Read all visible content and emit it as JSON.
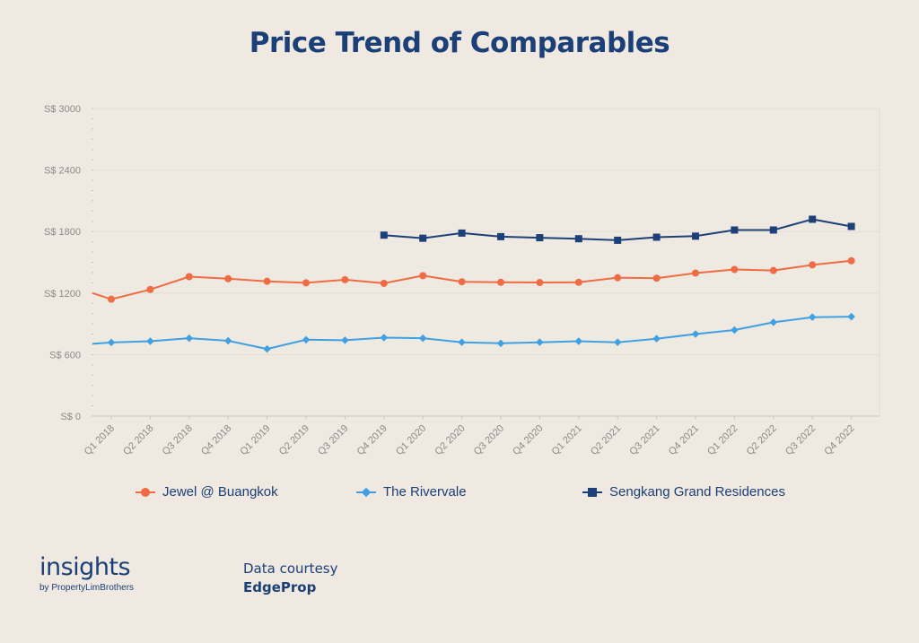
{
  "header": {
    "title": "Price Trend of Comparables"
  },
  "chart_data": {
    "type": "line",
    "title": "Price Trend of Comparables",
    "xlabel": "",
    "ylabel": "",
    "categories": [
      "Q1 2018",
      "Q2 2018",
      "Q3 2018",
      "Q4 2018",
      "Q1 2019",
      "Q2 2019",
      "Q3 2019",
      "Q4 2019",
      "Q1 2020",
      "Q2 2020",
      "Q3 2020",
      "Q4 2020",
      "Q1 2021",
      "Q2 2021",
      "Q3 2021",
      "Q4 2021",
      "Q1 2022",
      "Q2 2022",
      "Q3 2022",
      "Q4 2022"
    ],
    "yticks": [
      "S$ 0",
      "S$ 600",
      "S$ 1200",
      "S$ 1800",
      "S$ 2400",
      "S$ 3000"
    ],
    "ylim": [
      0,
      3000
    ],
    "grid": true,
    "legend_position": "bottom",
    "series": [
      {
        "name": "Jewel @ Buangkok",
        "color": "#ef6c44",
        "marker": "circle",
        "left_value": 1200,
        "values": [
          1140,
          1235,
          1360,
          1340,
          1315,
          1300,
          1330,
          1295,
          1370,
          1310,
          1305,
          1303,
          1305,
          1350,
          1345,
          1395,
          1430,
          1420,
          1475,
          1515
        ]
      },
      {
        "name": "The Rivervale",
        "color": "#3fa0e3",
        "marker": "diamond",
        "left_value": 705,
        "values": [
          718,
          730,
          760,
          735,
          655,
          745,
          740,
          765,
          760,
          720,
          710,
          720,
          730,
          720,
          755,
          800,
          840,
          915,
          965,
          970
        ]
      },
      {
        "name": "Sengkang Grand Residences",
        "color": "#1e4079",
        "marker": "square",
        "values": [
          null,
          null,
          null,
          null,
          null,
          null,
          null,
          1765,
          1735,
          1785,
          1750,
          1740,
          1730,
          1715,
          1745,
          1755,
          1815,
          1815,
          1920,
          1850
        ]
      }
    ]
  },
  "branding": {
    "logo_main": "insights",
    "logo_sub": "by PropertyLimBrothers"
  },
  "credit": {
    "line1": "Data courtesy",
    "line2": "EdgeProp"
  }
}
